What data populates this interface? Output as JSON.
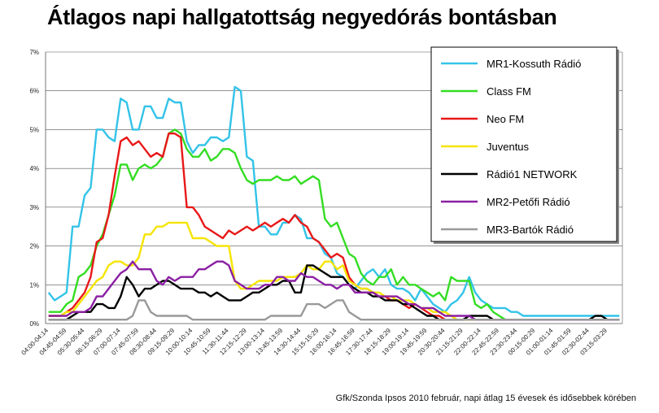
{
  "title": "Átlagos napi hallgatottság negyedórás bontásban",
  "source": "Gfk/Szonda Ipsos 2010 február, napi átlag 15 évesek és idősebbek körében",
  "chart_data": {
    "type": "line",
    "title": "Átlagos napi hallgatottság negyedórás bontásban",
    "ylim": [
      0,
      7
    ],
    "yticks": [
      "0%",
      "1%",
      "2%",
      "3%",
      "4%",
      "5%",
      "6%",
      "7%"
    ],
    "grid": "horizontal",
    "legend_position": "top-right",
    "xtick_labels": [
      "04:00-04:14",
      "04:45-04:59",
      "05:30-05:44",
      "06:15-06:29",
      "07:00-07:14",
      "07:45-07:59",
      "08:30-08:44",
      "09:15-09:29",
      "10:00-10:14",
      "10:45-10:59",
      "11:30-11:44",
      "12:15-12:29",
      "13:00-13:14",
      "13:45-13:59",
      "14:30-14:44",
      "15:15-15:29",
      "16:00-16:14",
      "16:45-16:59",
      "17:30-17:44",
      "18:15-18:29",
      "19:00-19:14",
      "19:45-19:59",
      "20:30-20:44",
      "21:15-21:29",
      "22:00-22:14",
      "22:45-22:59",
      "23:30-23:44",
      "00:15-00:29",
      "01:00-01:14",
      "01:45-01:59",
      "02:30-02:44",
      "03:15-03:29"
    ],
    "series": [
      {
        "name": "MR1-Kossuth Rádió",
        "color": "#33c3e8",
        "values": [
          0.8,
          0.6,
          0.7,
          0.8,
          2.5,
          2.5,
          3.3,
          3.5,
          5.0,
          5.0,
          4.8,
          4.7,
          5.8,
          5.7,
          5.0,
          5.0,
          5.6,
          5.6,
          5.3,
          5.3,
          5.8,
          5.7,
          5.7,
          4.7,
          4.4,
          4.6,
          4.6,
          4.8,
          4.8,
          4.7,
          4.8,
          6.1,
          6.0,
          4.3,
          4.2,
          2.5,
          2.5,
          2.3,
          2.3,
          2.6,
          2.6,
          2.8,
          2.7,
          2.2,
          2.2,
          2.1,
          1.8,
          1.7,
          1.3,
          1.2,
          1.0,
          0.9,
          1.1,
          1.3,
          1.4,
          1.2,
          1.4,
          1.0,
          0.9,
          0.9,
          0.8,
          0.6,
          0.9,
          0.7,
          0.5,
          0.4,
          0.3,
          0.5,
          0.6,
          0.8,
          1.2,
          0.8,
          0.6,
          0.5,
          0.4,
          0.4,
          0.4,
          0.3,
          0.3,
          0.2,
          0.2,
          0.2,
          0.2,
          0.2,
          0.2,
          0.2,
          0.2,
          0.2,
          0.2,
          0.2,
          0.2,
          0.2,
          0.2,
          0.2,
          0.2,
          0.2
        ]
      },
      {
        "name": "Class FM",
        "color": "#33dd22",
        "values": [
          0.3,
          0.3,
          0.3,
          0.5,
          0.6,
          1.2,
          1.3,
          1.5,
          2.0,
          2.3,
          2.8,
          3.3,
          4.1,
          4.1,
          3.7,
          4.0,
          4.1,
          4.0,
          4.1,
          4.3,
          4.9,
          5.0,
          4.9,
          4.5,
          4.3,
          4.3,
          4.5,
          4.2,
          4.3,
          4.5,
          4.5,
          4.4,
          4.0,
          3.7,
          3.6,
          3.7,
          3.7,
          3.7,
          3.8,
          3.7,
          3.7,
          3.8,
          3.6,
          3.7,
          3.8,
          3.7,
          2.7,
          2.5,
          2.6,
          2.2,
          1.8,
          1.7,
          1.3,
          1.1,
          1.0,
          1.2,
          1.2,
          1.4,
          1.0,
          1.2,
          1.0,
          1.0,
          0.9,
          0.8,
          0.7,
          0.8,
          0.6,
          1.2,
          1.1,
          1.1,
          1.1,
          0.5,
          0.4,
          0.5,
          0.3,
          0.2,
          0.1,
          0.1,
          0.1,
          0.1,
          0.1,
          0.1,
          0.1,
          0.1,
          0.1,
          0.1,
          0.1,
          0.1,
          0.1,
          0.1,
          0.1,
          0.1,
          0.1,
          0.1,
          0.1,
          0.1
        ]
      },
      {
        "name": "Neo FM",
        "color": "#e81818",
        "values": [
          0.2,
          0.2,
          0.2,
          0.3,
          0.4,
          0.6,
          0.8,
          1.2,
          2.1,
          2.2,
          2.8,
          3.8,
          4.7,
          4.8,
          4.6,
          4.7,
          4.5,
          4.3,
          4.4,
          4.3,
          4.9,
          4.9,
          4.8,
          3.0,
          3.0,
          2.8,
          2.5,
          2.4,
          2.3,
          2.2,
          2.4,
          2.3,
          2.4,
          2.5,
          2.4,
          2.5,
          2.6,
          2.5,
          2.6,
          2.7,
          2.6,
          2.8,
          2.6,
          2.5,
          2.2,
          2.1,
          1.9,
          1.7,
          1.8,
          1.7,
          1.2,
          1.0,
          0.9,
          0.9,
          0.8,
          0.7,
          0.7,
          0.6,
          0.6,
          0.5,
          0.4,
          0.5,
          0.4,
          0.3,
          0.2,
          0.2,
          0.1,
          0.1,
          0.1,
          0.1,
          0.1,
          0.1,
          0.1,
          0.1,
          0.1,
          0.1,
          0.1,
          0.1,
          0.1,
          0.1,
          0.1,
          0.1,
          0.1,
          0.1,
          0.1,
          0.1,
          0.1,
          0.1,
          0.1,
          0.1,
          0.1,
          0.1,
          0.1,
          0.1,
          0.1,
          0.1
        ]
      },
      {
        "name": "Juventus",
        "color": "#f5e400",
        "values": [
          0.2,
          0.2,
          0.2,
          0.3,
          0.3,
          0.5,
          0.7,
          0.9,
          1.1,
          1.2,
          1.5,
          1.6,
          1.6,
          1.5,
          1.5,
          1.7,
          2.3,
          2.3,
          2.5,
          2.5,
          2.6,
          2.6,
          2.6,
          2.6,
          2.2,
          2.2,
          2.2,
          2.1,
          2.0,
          2.0,
          2.0,
          1.1,
          0.9,
          0.9,
          1.0,
          1.1,
          1.1,
          1.1,
          1.1,
          1.2,
          1.2,
          1.2,
          1.3,
          1.5,
          1.4,
          1.4,
          1.6,
          1.6,
          1.4,
          1.5,
          1.1,
          1.0,
          0.9,
          0.9,
          0.8,
          0.8,
          0.7,
          0.7,
          0.6,
          0.6,
          0.6,
          0.5,
          0.4,
          0.4,
          0.3,
          0.3,
          0.3,
          0.2,
          0.1,
          0.1,
          0.1,
          0.1,
          0.1,
          0.1,
          0.1,
          0.1,
          0.1,
          0.1,
          0.1,
          0.1,
          0.1,
          0.1,
          0.1,
          0.1,
          0.1,
          0.1,
          0.1,
          0.1,
          0.1,
          0.1,
          0.1,
          0.1,
          0.1,
          0.1,
          0.1,
          0.1
        ]
      },
      {
        "name": "Rádió1 NETWORK",
        "color": "#000000",
        "values": [
          0.1,
          0.1,
          0.1,
          0.1,
          0.2,
          0.3,
          0.3,
          0.3,
          0.5,
          0.5,
          0.4,
          0.4,
          0.7,
          1.2,
          1.0,
          0.7,
          0.9,
          0.9,
          1.0,
          1.1,
          1.1,
          1.0,
          0.9,
          0.9,
          0.9,
          0.8,
          0.8,
          0.7,
          0.8,
          0.7,
          0.6,
          0.6,
          0.6,
          0.7,
          0.8,
          0.8,
          0.9,
          1.0,
          1.0,
          1.1,
          1.1,
          0.8,
          0.8,
          1.5,
          1.5,
          1.4,
          1.3,
          1.2,
          1.2,
          1.2,
          1.0,
          0.9,
          0.8,
          0.8,
          0.7,
          0.7,
          0.6,
          0.6,
          0.6,
          0.5,
          0.5,
          0.4,
          0.3,
          0.2,
          0.2,
          0.1,
          0.1,
          0.1,
          0.1,
          0.1,
          0.2,
          0.2,
          0.2,
          0.2,
          0.1,
          0.1,
          0.1,
          0.1,
          0.1,
          0.1,
          0.1,
          0.1,
          0.1,
          0.1,
          0.1,
          0.1,
          0.1,
          0.1,
          0.1,
          0.1,
          0.1,
          0.2,
          0.2,
          0.1,
          0.1,
          0.1
        ]
      },
      {
        "name": "MR2-Petőfi Rádió",
        "color": "#8b1fa3",
        "values": [
          0.2,
          0.2,
          0.2,
          0.2,
          0.3,
          0.3,
          0.3,
          0.4,
          0.7,
          0.7,
          0.9,
          1.1,
          1.3,
          1.4,
          1.6,
          1.4,
          1.4,
          1.4,
          1.1,
          1.0,
          1.2,
          1.1,
          1.2,
          1.2,
          1.2,
          1.4,
          1.4,
          1.5,
          1.6,
          1.6,
          1.5,
          1.1,
          1.0,
          0.9,
          0.9,
          0.9,
          1.0,
          1.0,
          1.2,
          1.2,
          1.1,
          1.1,
          1.3,
          1.2,
          1.2,
          1.1,
          1.0,
          1.0,
          0.9,
          1.0,
          1.0,
          0.8,
          0.8,
          0.8,
          0.8,
          0.7,
          0.7,
          0.7,
          0.7,
          0.6,
          0.5,
          0.5,
          0.4,
          0.4,
          0.4,
          0.3,
          0.2,
          0.2,
          0.2,
          0.2,
          0.2,
          0.1,
          0.1,
          0.1,
          0.1,
          0.1,
          0.1,
          0.1,
          0.1,
          0.1,
          0.1,
          0.1,
          0.1,
          0.1,
          0.1,
          0.1,
          0.1,
          0.1,
          0.1,
          0.1,
          0.1,
          0.1,
          0.1,
          0.1,
          0.1,
          0.1
        ]
      },
      {
        "name": "MR3-Bartók Rádió",
        "color": "#999999",
        "values": [
          0.1,
          0.1,
          0.1,
          0.1,
          0.1,
          0.1,
          0.1,
          0.1,
          0.1,
          0.1,
          0.1,
          0.1,
          0.1,
          0.1,
          0.2,
          0.6,
          0.6,
          0.3,
          0.2,
          0.2,
          0.2,
          0.2,
          0.2,
          0.2,
          0.1,
          0.1,
          0.1,
          0.1,
          0.1,
          0.1,
          0.1,
          0.1,
          0.1,
          0.1,
          0.1,
          0.1,
          0.1,
          0.2,
          0.2,
          0.2,
          0.2,
          0.2,
          0.2,
          0.5,
          0.5,
          0.5,
          0.4,
          0.5,
          0.6,
          0.6,
          0.3,
          0.2,
          0.1,
          0.1,
          0.1,
          0.1,
          0.1,
          0.1,
          0.1,
          0.1,
          0.1,
          0.1,
          0.1,
          0.1,
          0.1,
          0.1,
          0.1,
          0.1,
          0.1,
          0.1,
          0.1,
          0.1,
          0.1,
          0.1,
          0.1,
          0.1,
          0.1,
          0.1,
          0.1,
          0.1,
          0.1,
          0.1,
          0.1,
          0.1,
          0.1,
          0.1,
          0.1,
          0.1,
          0.1,
          0.1,
          0.1,
          0.1,
          0.1,
          0.1,
          0.1,
          0.1
        ]
      }
    ]
  }
}
